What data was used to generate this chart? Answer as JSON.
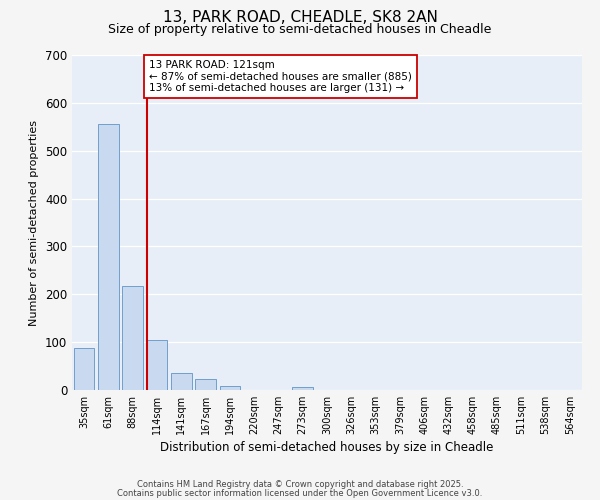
{
  "title1": "13, PARK ROAD, CHEADLE, SK8 2AN",
  "title2": "Size of property relative to semi-detached houses in Cheadle",
  "xlabel": "Distribution of semi-detached houses by size in Cheadle",
  "ylabel": "Number of semi-detached properties",
  "categories": [
    "35sqm",
    "61sqm",
    "88sqm",
    "114sqm",
    "141sqm",
    "167sqm",
    "194sqm",
    "220sqm",
    "247sqm",
    "273sqm",
    "300sqm",
    "326sqm",
    "353sqm",
    "379sqm",
    "406sqm",
    "432sqm",
    "458sqm",
    "485sqm",
    "511sqm",
    "538sqm",
    "564sqm"
  ],
  "values": [
    88,
    555,
    218,
    105,
    35,
    22,
    8,
    0,
    0,
    7,
    0,
    0,
    0,
    0,
    0,
    0,
    0,
    0,
    0,
    0,
    0
  ],
  "bar_color": "#c9d9f0",
  "bar_edge_color": "#6f9fcc",
  "property_line_index": 3,
  "property_line_color": "#cc0000",
  "annotation_text": "13 PARK ROAD: 121sqm\n← 87% of semi-detached houses are smaller (885)\n13% of semi-detached houses are larger (131) →",
  "annotation_box_color": "#ffffff",
  "annotation_box_edge_color": "#cc0000",
  "ylim": [
    0,
    700
  ],
  "yticks": [
    0,
    100,
    200,
    300,
    400,
    500,
    600,
    700
  ],
  "background_color": "#e8eef8",
  "grid_color": "#ffffff",
  "footer1": "Contains HM Land Registry data © Crown copyright and database right 2025.",
  "footer2": "Contains public sector information licensed under the Open Government Licence v3.0.",
  "title_fontsize": 11,
  "subtitle_fontsize": 9,
  "fig_bg": "#f5f5f5"
}
